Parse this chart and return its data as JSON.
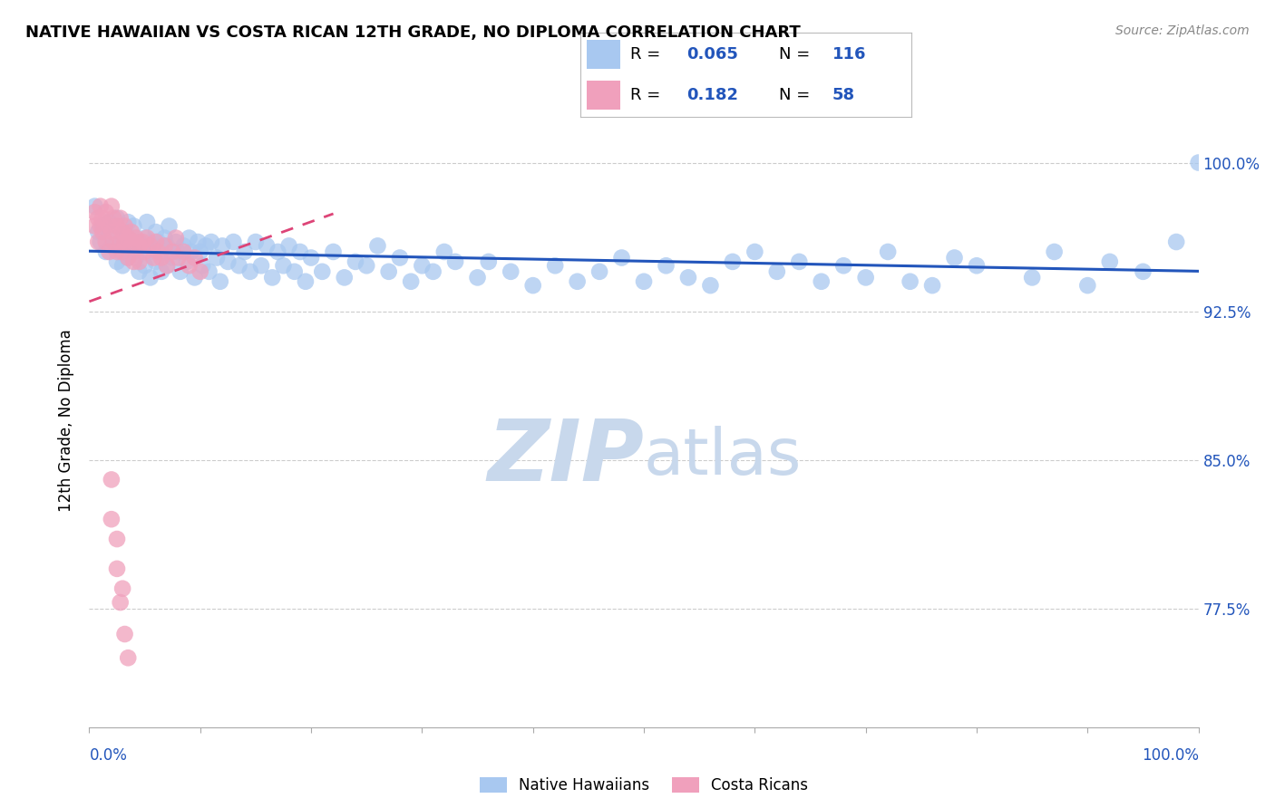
{
  "title": "NATIVE HAWAIIAN VS COSTA RICAN 12TH GRADE, NO DIPLOMA CORRELATION CHART",
  "source": "Source: ZipAtlas.com",
  "ylabel": "12th Grade, No Diploma",
  "legend_labels": [
    "Native Hawaiians",
    "Costa Ricans"
  ],
  "blue_color": "#A8C8F0",
  "pink_color": "#F0A0BC",
  "blue_line_color": "#2255BB",
  "pink_line_color": "#DD4477",
  "watermark_zip": "ZIP",
  "watermark_atlas": "atlas",
  "watermark_color_zip": "#C8D8EC",
  "watermark_color_atlas": "#C8D8EC",
  "ytick_labels": [
    "77.5%",
    "85.0%",
    "92.5%",
    "100.0%"
  ],
  "ytick_values": [
    0.775,
    0.85,
    0.925,
    1.0
  ],
  "xlim": [
    0.0,
    1.0
  ],
  "ylim": [
    0.715,
    1.025
  ],
  "blue_R": "0.065",
  "blue_N": "116",
  "pink_R": "0.182",
  "pink_N": "58",
  "blue_scatter_x": [
    0.005,
    0.008,
    0.01,
    0.012,
    0.015,
    0.018,
    0.02,
    0.022,
    0.025,
    0.025,
    0.028,
    0.03,
    0.03,
    0.032,
    0.035,
    0.035,
    0.038,
    0.04,
    0.04,
    0.042,
    0.045,
    0.045,
    0.048,
    0.05,
    0.05,
    0.052,
    0.055,
    0.055,
    0.058,
    0.06,
    0.06,
    0.062,
    0.065,
    0.065,
    0.068,
    0.07,
    0.07,
    0.072,
    0.075,
    0.078,
    0.08,
    0.082,
    0.085,
    0.088,
    0.09,
    0.092,
    0.095,
    0.098,
    0.1,
    0.102,
    0.105,
    0.108,
    0.11,
    0.115,
    0.118,
    0.12,
    0.125,
    0.13,
    0.135,
    0.14,
    0.145,
    0.15,
    0.155,
    0.16,
    0.165,
    0.17,
    0.175,
    0.18,
    0.185,
    0.19,
    0.195,
    0.2,
    0.21,
    0.22,
    0.23,
    0.24,
    0.25,
    0.26,
    0.27,
    0.28,
    0.29,
    0.3,
    0.31,
    0.32,
    0.33,
    0.35,
    0.36,
    0.38,
    0.4,
    0.42,
    0.44,
    0.46,
    0.48,
    0.5,
    0.52,
    0.54,
    0.56,
    0.58,
    0.6,
    0.62,
    0.64,
    0.66,
    0.68,
    0.7,
    0.72,
    0.74,
    0.76,
    0.78,
    0.8,
    0.85,
    0.87,
    0.9,
    0.92,
    0.95,
    0.98,
    1.0
  ],
  "blue_scatter_y": [
    0.978,
    0.965,
    0.96,
    0.968,
    0.955,
    0.97,
    0.958,
    0.962,
    0.95,
    0.972,
    0.955,
    0.96,
    0.948,
    0.965,
    0.952,
    0.97,
    0.96,
    0.955,
    0.968,
    0.952,
    0.96,
    0.945,
    0.958,
    0.962,
    0.948,
    0.97,
    0.955,
    0.942,
    0.958,
    0.965,
    0.95,
    0.96,
    0.955,
    0.945,
    0.962,
    0.958,
    0.948,
    0.968,
    0.952,
    0.96,
    0.955,
    0.945,
    0.958,
    0.95,
    0.962,
    0.955,
    0.942,
    0.96,
    0.955,
    0.948,
    0.958,
    0.945,
    0.96,
    0.952,
    0.94,
    0.958,
    0.95,
    0.96,
    0.948,
    0.955,
    0.945,
    0.96,
    0.948,
    0.958,
    0.942,
    0.955,
    0.948,
    0.958,
    0.945,
    0.955,
    0.94,
    0.952,
    0.945,
    0.955,
    0.942,
    0.95,
    0.948,
    0.958,
    0.945,
    0.952,
    0.94,
    0.948,
    0.945,
    0.955,
    0.95,
    0.942,
    0.95,
    0.945,
    0.938,
    0.948,
    0.94,
    0.945,
    0.952,
    0.94,
    0.948,
    0.942,
    0.938,
    0.95,
    0.955,
    0.945,
    0.95,
    0.94,
    0.948,
    0.942,
    0.955,
    0.94,
    0.938,
    0.952,
    0.948,
    0.942,
    0.955,
    0.938,
    0.95,
    0.945,
    0.96,
    1.0
  ],
  "pink_scatter_x": [
    0.005,
    0.005,
    0.008,
    0.008,
    0.01,
    0.01,
    0.012,
    0.012,
    0.015,
    0.015,
    0.018,
    0.018,
    0.02,
    0.02,
    0.022,
    0.022,
    0.025,
    0.025,
    0.028,
    0.028,
    0.03,
    0.03,
    0.032,
    0.032,
    0.035,
    0.035,
    0.038,
    0.038,
    0.04,
    0.04,
    0.042,
    0.045,
    0.045,
    0.048,
    0.05,
    0.052,
    0.055,
    0.058,
    0.06,
    0.062,
    0.065,
    0.068,
    0.07,
    0.075,
    0.078,
    0.08,
    0.085,
    0.09,
    0.095,
    0.1,
    0.02,
    0.02,
    0.025,
    0.025,
    0.028,
    0.03,
    0.032,
    0.035
  ],
  "pink_scatter_y": [
    0.975,
    0.968,
    0.972,
    0.96,
    0.968,
    0.978,
    0.965,
    0.972,
    0.96,
    0.975,
    0.968,
    0.955,
    0.965,
    0.978,
    0.96,
    0.972,
    0.968,
    0.955,
    0.96,
    0.972,
    0.965,
    0.955,
    0.968,
    0.96,
    0.962,
    0.952,
    0.965,
    0.958,
    0.96,
    0.95,
    0.962,
    0.958,
    0.95,
    0.96,
    0.955,
    0.962,
    0.958,
    0.952,
    0.96,
    0.955,
    0.952,
    0.958,
    0.948,
    0.955,
    0.962,
    0.952,
    0.955,
    0.948,
    0.952,
    0.945,
    0.84,
    0.82,
    0.81,
    0.795,
    0.778,
    0.785,
    0.762,
    0.75
  ]
}
